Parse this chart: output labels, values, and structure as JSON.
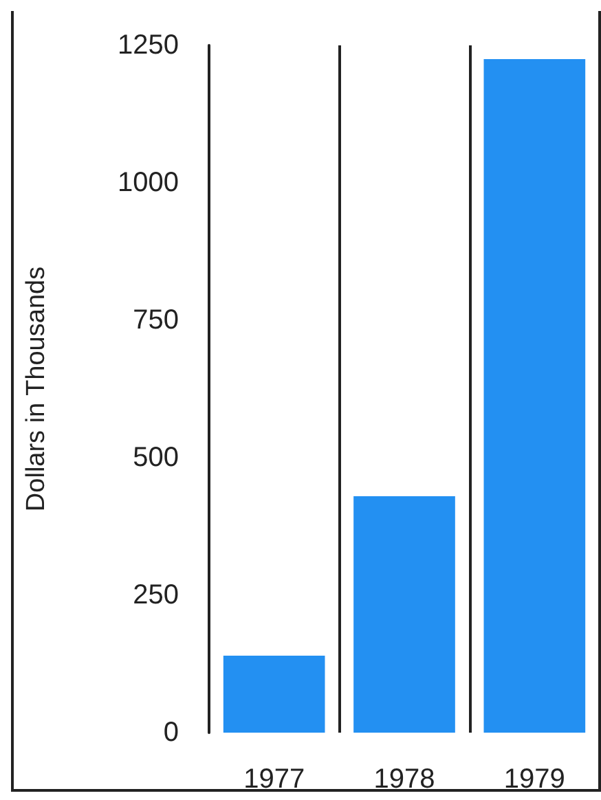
{
  "chart_data": {
    "type": "bar",
    "ylabel": "Dollars in Thousands",
    "categories": [
      "1977",
      "1978",
      "1979"
    ],
    "values": [
      140,
      430,
      1225
    ],
    "color": "#2390f2",
    "ylim": [
      0,
      1250
    ],
    "yticks": [
      0,
      250,
      500,
      750,
      1000,
      1250
    ],
    "grid": "x"
  }
}
